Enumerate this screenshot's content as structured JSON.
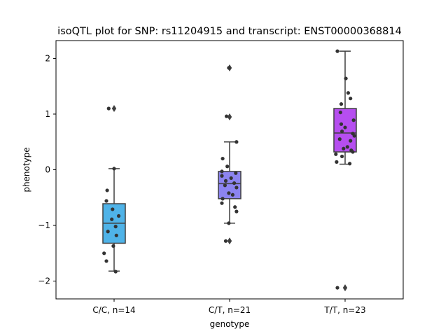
{
  "chart_data": {
    "type": "box",
    "title": "isoQTL plot for SNP: rs11204915 and transcript: ENST00000368814",
    "xlabel": "genotype",
    "ylabel": "phenotype",
    "ylim": [
      -2.32,
      2.32
    ],
    "yticks": [
      -2,
      -1,
      0,
      1,
      2
    ],
    "grid": false,
    "categories": [
      "C/C, n=14",
      "C/T, n=21",
      "T/T, n=23"
    ],
    "colors": [
      "#4fb3e8",
      "#8c84f0",
      "#b64ef0"
    ],
    "point_color": "#333333",
    "boxes": [
      {
        "q1": -1.32,
        "median": -0.96,
        "q3": -0.61,
        "whisker_low": -1.82,
        "whisker_high": 0.02,
        "fliers": [
          1.1
        ]
      },
      {
        "q1": -0.52,
        "median": -0.25,
        "q3": -0.03,
        "whisker_low": -0.96,
        "whisker_high": 0.5,
        "fliers": [
          1.83,
          0.95,
          -1.28
        ]
      },
      {
        "q1": 0.32,
        "median": 0.66,
        "q3": 1.1,
        "whisker_low": 0.1,
        "whisker_high": 2.13,
        "fliers": [
          -2.12
        ]
      }
    ],
    "points": [
      [
        [
          -0.07,
          1.1
        ],
        [
          0.0,
          0.02
        ],
        [
          -0.09,
          -0.37
        ],
        [
          -0.1,
          -0.56
        ],
        [
          -0.02,
          -0.71
        ],
        [
          0.06,
          -0.83
        ],
        [
          -0.03,
          -0.89
        ],
        [
          0.02,
          -1.02
        ],
        [
          -0.08,
          -1.11
        ],
        [
          0.03,
          -1.18
        ],
        [
          -0.01,
          -1.37
        ],
        [
          -0.13,
          -1.5
        ],
        [
          -0.1,
          -1.64
        ],
        [
          0.02,
          -1.83
        ]
      ],
      [
        [
          -0.01,
          1.83
        ],
        [
          -0.04,
          0.96
        ],
        [
          0.09,
          0.5
        ],
        [
          -0.09,
          0.2
        ],
        [
          -0.03,
          0.06
        ],
        [
          -0.1,
          -0.03
        ],
        [
          0.08,
          -0.06
        ],
        [
          -0.1,
          -0.11
        ],
        [
          0.02,
          -0.15
        ],
        [
          -0.05,
          -0.2
        ],
        [
          0.06,
          -0.24
        ],
        [
          -0.06,
          -0.28
        ],
        [
          0.09,
          -0.32
        ],
        [
          -0.01,
          -0.42
        ],
        [
          0.04,
          -0.45
        ],
        [
          -0.09,
          -0.52
        ],
        [
          -0.1,
          -0.6
        ],
        [
          0.07,
          -0.67
        ],
        [
          0.09,
          -0.75
        ],
        [
          -0.01,
          -0.96
        ],
        [
          -0.05,
          -1.28
        ]
      ],
      [
        [
          -0.1,
          2.13
        ],
        [
          0.01,
          1.64
        ],
        [
          0.04,
          1.38
        ],
        [
          0.07,
          1.28
        ],
        [
          -0.05,
          1.18
        ],
        [
          -0.06,
          1.03
        ],
        [
          0.11,
          0.89
        ],
        [
          -0.05,
          0.82
        ],
        [
          0.0,
          0.76
        ],
        [
          -0.04,
          0.69
        ],
        [
          0.1,
          0.65
        ],
        [
          0.12,
          0.61
        ],
        [
          0.07,
          0.52
        ],
        [
          -0.07,
          0.55
        ],
        [
          0.03,
          0.41
        ],
        [
          -0.02,
          0.38
        ],
        [
          0.08,
          0.35
        ],
        [
          0.1,
          0.32
        ],
        [
          -0.12,
          0.28
        ],
        [
          -0.04,
          0.24
        ],
        [
          -0.11,
          0.14
        ],
        [
          0.06,
          0.11
        ],
        [
          -0.1,
          -2.12
        ]
      ]
    ]
  }
}
